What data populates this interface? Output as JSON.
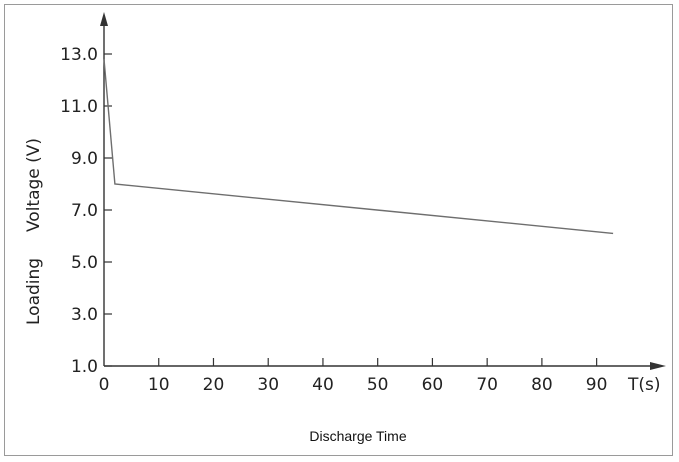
{
  "chart_data": {
    "type": "line",
    "ylabel_words": [
      "Loading",
      "Voltage (V)"
    ],
    "xunit_label": "T(s)",
    "caption": "Discharge Time",
    "xlim": [
      0,
      95
    ],
    "ylim": [
      1.0,
      13.0
    ],
    "xticks": [
      0,
      10,
      20,
      30,
      40,
      50,
      60,
      70,
      80,
      90
    ],
    "xtick_labels": [
      "0",
      "10",
      "20",
      "30",
      "40",
      "50",
      "60",
      "70",
      "80",
      "90"
    ],
    "yticks": [
      1.0,
      3.0,
      5.0,
      7.0,
      9.0,
      11.0,
      13.0
    ],
    "ytick_labels": [
      "1.0",
      "3.0",
      "5.0",
      "7.0",
      "9.0",
      "11.0",
      "13.0"
    ],
    "grid": false,
    "series": [
      {
        "x": [
          0,
          2,
          93
        ],
        "y": [
          12.8,
          8.0,
          6.1
        ],
        "color": "#6e6e6e"
      }
    ],
    "axis_color": "#333333"
  }
}
